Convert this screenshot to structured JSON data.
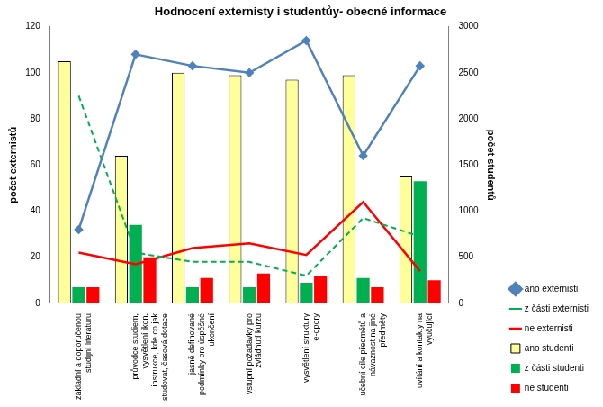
{
  "chart_data": {
    "type": "bar",
    "title": "Hodnocení externisty i studentůy- obecné informace",
    "y_label": "počet externistů",
    "y2_label": "počet studentů",
    "categories": [
      "základní a doporučenou studijní literaturu",
      "průvodce studiem, vysvětlení ikon, instrukce, kde co jak studovat, časová dotace",
      "jasně definované podmínky pro úspěšné ukončení",
      "vstupní požadavky pro zvládnutí kurzu",
      "vysvětlení struktury e-opory",
      "učební cíle předmětů a návaznost na jiné předměty",
      "uvítání a kontakty na vyučující"
    ],
    "series": [
      {
        "name": "ano studenti",
        "type": "bar",
        "axis": "y2",
        "color": "#ffff99",
        "values": [
          2625,
          1600,
          2500,
          2475,
          2425,
          2475,
          1375
        ]
      },
      {
        "name": "z části studenti",
        "type": "bar",
        "axis": "y2",
        "color": "#00b050",
        "values": [
          175,
          850,
          175,
          175,
          225,
          275,
          1325
        ]
      },
      {
        "name": "ne studenti",
        "type": "bar",
        "axis": "y2",
        "color": "#ff0000",
        "values": [
          175,
          500,
          275,
          325,
          300,
          175,
          250
        ]
      },
      {
        "name": "ano externisti",
        "type": "line",
        "color": "#4f81bd",
        "marker": "diamond",
        "line_style": "solid",
        "values": [
          32,
          108,
          103,
          100,
          114,
          64,
          103
        ]
      },
      {
        "name": "z části externisti",
        "type": "line",
        "color": "#00b050",
        "marker": "none",
        "line_style": "dashed",
        "values": [
          90,
          22,
          18,
          18,
          12,
          37,
          29
        ]
      },
      {
        "name": "ne externisti",
        "type": "line",
        "color": "#ff0000",
        "marker": "none",
        "line_style": "solid",
        "values": [
          22,
          17,
          24,
          26,
          21,
          44,
          14
        ]
      }
    ],
    "ylim": [
      0,
      120
    ],
    "yticks": [
      0,
      20,
      40,
      60,
      80,
      100,
      120
    ],
    "y2lim": [
      0,
      3000
    ],
    "y2ticks": [
      0,
      500,
      1000,
      1500,
      2000,
      2500,
      3000
    ],
    "grid": false,
    "legend": "right"
  }
}
